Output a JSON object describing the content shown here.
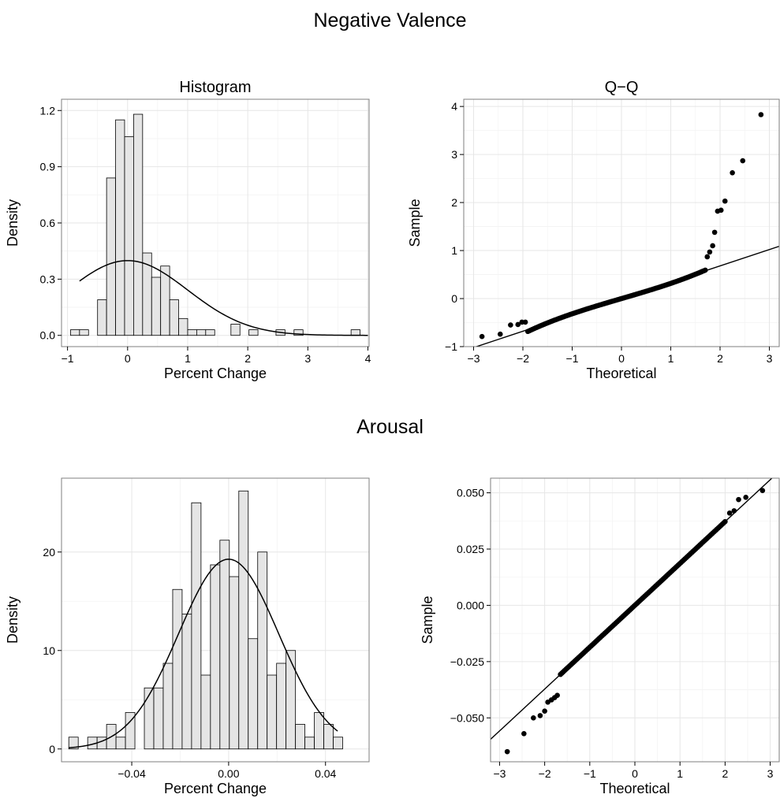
{
  "sections": [
    {
      "title": "Negative Valence"
    },
    {
      "title": "Arousal"
    }
  ],
  "chart_data": [
    {
      "type": "bar",
      "panel": "histogram",
      "section": "Negative Valence",
      "title": "Histogram",
      "xlabel": "Percent Change",
      "ylabel": "Density",
      "xlim": [
        -1.1,
        4.02
      ],
      "ylim": [
        -0.06,
        1.26
      ],
      "xticks": [
        -1,
        0,
        1,
        2,
        3,
        4
      ],
      "xtick_labels": [
        "−1",
        "0",
        "1",
        "2",
        "3",
        "4"
      ],
      "yticks": [
        0.0,
        0.3,
        0.6,
        0.9,
        1.2
      ],
      "ytick_labels": [
        "0.0",
        "0.3",
        "0.6",
        "0.9",
        "1.2"
      ],
      "grid": true,
      "bar_fill": "#e5e5e5",
      "bins": [
        {
          "x0": -0.95,
          "x1": -0.8,
          "y": 0.03
        },
        {
          "x0": -0.8,
          "x1": -0.65,
          "y": 0.03
        },
        {
          "x0": -0.65,
          "x1": -0.5,
          "y": 0.0
        },
        {
          "x0": -0.5,
          "x1": -0.35,
          "y": 0.19
        },
        {
          "x0": -0.35,
          "x1": -0.2,
          "y": 0.84
        },
        {
          "x0": -0.2,
          "x1": -0.05,
          "y": 1.15
        },
        {
          "x0": -0.05,
          "x1": 0.1,
          "y": 1.06
        },
        {
          "x0": 0.1,
          "x1": 0.25,
          "y": 1.18
        },
        {
          "x0": 0.25,
          "x1": 0.4,
          "y": 0.44
        },
        {
          "x0": 0.4,
          "x1": 0.55,
          "y": 0.31
        },
        {
          "x0": 0.55,
          "x1": 0.7,
          "y": 0.37
        },
        {
          "x0": 0.7,
          "x1": 0.85,
          "y": 0.19
        },
        {
          "x0": 0.85,
          "x1": 1.0,
          "y": 0.09
        },
        {
          "x0": 1.0,
          "x1": 1.15,
          "y": 0.03
        },
        {
          "x0": 1.15,
          "x1": 1.3,
          "y": 0.03
        },
        {
          "x0": 1.3,
          "x1": 1.45,
          "y": 0.03
        },
        {
          "x0": 1.72,
          "x1": 1.87,
          "y": 0.06
        },
        {
          "x0": 2.02,
          "x1": 2.17,
          "y": 0.03
        },
        {
          "x0": 2.47,
          "x1": 2.62,
          "y": 0.03
        },
        {
          "x0": 2.77,
          "x1": 2.92,
          "y": 0.03
        },
        {
          "x0": 3.72,
          "x1": 3.87,
          "y": 0.03
        }
      ],
      "density_curve": {
        "mean": 0.0,
        "sd": 1.0,
        "x_from": -0.8,
        "x_to": 4.0
      }
    },
    {
      "type": "scatter",
      "panel": "qq",
      "section": "Negative Valence",
      "title": "Q−Q",
      "xlabel": "Theoretical",
      "ylabel": "Sample",
      "xlim": [
        -3.2,
        3.2
      ],
      "ylim": [
        -1.0,
        4.15
      ],
      "xticks": [
        -3,
        -2,
        -1,
        0,
        1,
        2,
        3
      ],
      "xtick_labels": [
        "−3",
        "−2",
        "−1",
        "0",
        "1",
        "2",
        "3"
      ],
      "yticks": [
        -1,
        0,
        1,
        2,
        3,
        4
      ],
      "ytick_labels": [
        "−1",
        "0",
        "1",
        "2",
        "3",
        "4"
      ],
      "grid": true,
      "reference_line": {
        "intercept": 0.0,
        "slope": 0.34
      },
      "outer_points": [
        {
          "x": 1.74,
          "y": 0.87
        },
        {
          "x": 1.79,
          "y": 0.97
        },
        {
          "x": 1.85,
          "y": 1.1
        },
        {
          "x": 1.89,
          "y": 1.38
        },
        {
          "x": 1.95,
          "y": 1.82
        },
        {
          "x": 2.02,
          "y": 1.84
        },
        {
          "x": 2.1,
          "y": 2.03
        },
        {
          "x": 2.25,
          "y": 2.62
        },
        {
          "x": 2.46,
          "y": 2.87
        },
        {
          "x": 2.83,
          "y": 3.83
        },
        {
          "x": -2.83,
          "y": -0.79
        },
        {
          "x": -2.46,
          "y": -0.74
        },
        {
          "x": -2.25,
          "y": -0.55
        },
        {
          "x": -2.1,
          "y": -0.54
        },
        {
          "x": -2.02,
          "y": -0.49
        },
        {
          "x": -1.95,
          "y": -0.49
        }
      ],
      "body_points": {
        "n": 120,
        "x_from": -1.9,
        "x_to": 1.7,
        "slope": 0.3,
        "curve": 0.05
      }
    },
    {
      "type": "bar",
      "panel": "histogram",
      "section": "Arousal",
      "title": "",
      "xlabel": "Percent Change",
      "ylabel": "Density",
      "xlim": [
        -0.069,
        0.058
      ],
      "ylim": [
        -1.3,
        27.5
      ],
      "xticks": [
        -0.04,
        0.0,
        0.04
      ],
      "xtick_labels": [
        "−0.04",
        "0.00",
        "0.04"
      ],
      "yticks": [
        0,
        10,
        20
      ],
      "ytick_labels": [
        "0",
        "10",
        "20"
      ],
      "grid": true,
      "bar_fill": "#e5e5e5",
      "bin_start": -0.066,
      "bin_width": 0.0039,
      "values": [
        1.2,
        0.0,
        1.2,
        1.2,
        2.5,
        1.2,
        3.7,
        0.0,
        6.2,
        6.2,
        8.7,
        16.2,
        13.7,
        25.0,
        7.5,
        18.7,
        21.2,
        17.5,
        26.2,
        11.2,
        20.0,
        7.5,
        8.7,
        10.0,
        2.5,
        1.2,
        3.7,
        2.5,
        1.2
      ],
      "density_curve": {
        "mean": 0.0,
        "sd": 0.0207,
        "x_from": -0.066,
        "x_to": 0.045
      }
    },
    {
      "type": "scatter",
      "panel": "qq",
      "section": "Arousal",
      "title": "",
      "xlabel": "Theoretical",
      "ylabel": "Sample",
      "xlim": [
        -3.2,
        3.2
      ],
      "ylim": [
        -0.0695,
        0.0565
      ],
      "xticks": [
        -3,
        -2,
        -1,
        0,
        1,
        2,
        3
      ],
      "xtick_labels": [
        "−3",
        "−2",
        "−1",
        "0",
        "1",
        "2",
        "3"
      ],
      "yticks": [
        -0.05,
        -0.025,
        0.0,
        0.025,
        0.05
      ],
      "ytick_labels": [
        "−0.050",
        "−0.025",
        "0.000",
        "0.025",
        "0.050"
      ],
      "grid": true,
      "reference_line": {
        "intercept": 0.0,
        "slope": 0.0186
      },
      "outer_points": [
        {
          "x": -2.83,
          "y": -0.065
        },
        {
          "x": -2.46,
          "y": -0.057
        },
        {
          "x": -2.25,
          "y": -0.05
        },
        {
          "x": -2.1,
          "y": -0.049
        },
        {
          "x": -2.0,
          "y": -0.047
        },
        {
          "x": -1.93,
          "y": -0.043
        },
        {
          "x": -1.85,
          "y": -0.042
        },
        {
          "x": -1.78,
          "y": -0.041
        },
        {
          "x": -1.72,
          "y": -0.04
        },
        {
          "x": 2.1,
          "y": 0.041
        },
        {
          "x": 2.2,
          "y": 0.042
        },
        {
          "x": 2.3,
          "y": 0.047
        },
        {
          "x": 2.46,
          "y": 0.048
        },
        {
          "x": 2.83,
          "y": 0.051
        }
      ],
      "body_points": {
        "n": 120,
        "x_from": -1.65,
        "x_to": 2.0,
        "slope": 0.0186,
        "curve": 0.0
      }
    }
  ]
}
